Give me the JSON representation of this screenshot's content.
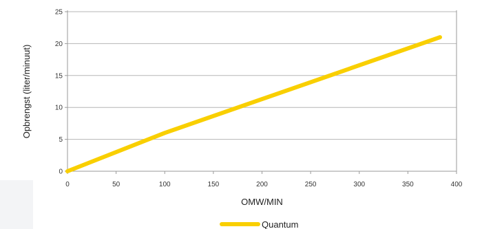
{
  "chart_data": {
    "type": "line",
    "title": "",
    "xlabel": "OMW/MIN",
    "ylabel": "Opbrengst (liter/minuut)",
    "xlim": [
      0,
      400
    ],
    "ylim": [
      0,
      25
    ],
    "x_ticks": [
      0,
      50,
      100,
      150,
      200,
      250,
      300,
      350,
      400
    ],
    "y_ticks": [
      0,
      5,
      10,
      15,
      20,
      25
    ],
    "grid": "horizontal",
    "legend_position": "bottom-center",
    "series": [
      {
        "name": "Quantum",
        "color": "#f9cf00",
        "x": [
          0,
          100,
          383
        ],
        "y": [
          0,
          6,
          21
        ]
      }
    ]
  },
  "colors": {
    "grid": "#b5b5b5",
    "axis": "#9a9a9a",
    "text": "#222222",
    "corner_patch": "#f3f4f6"
  }
}
